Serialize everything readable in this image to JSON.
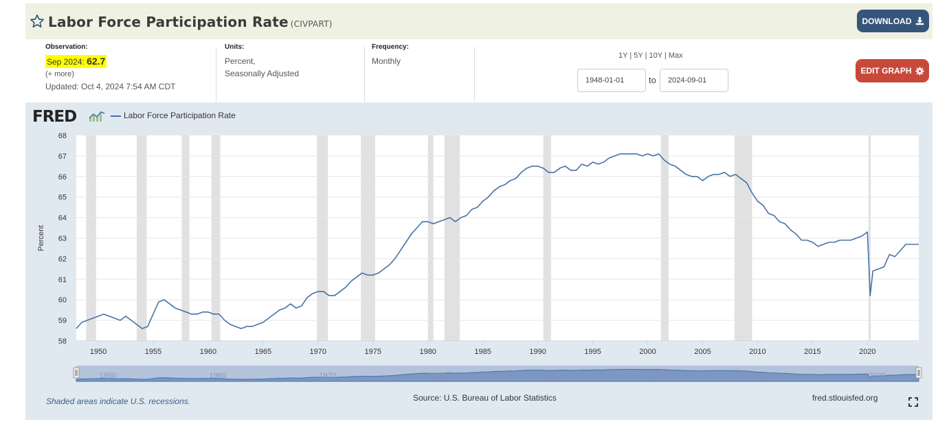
{
  "header": {
    "title": "Labor Force Participation Rate",
    "series_id": "(CIVPART)",
    "download_label": "DOWNLOAD",
    "edit_graph_label": "EDIT GRAPH"
  },
  "observation": {
    "label": "Observation:",
    "date": "Sep 2024:",
    "value": "62.7",
    "more": "(+ more)",
    "updated": "Updated: Oct 4, 2024 7:54 AM CDT"
  },
  "units": {
    "label": "Units:",
    "line1": "Percent,",
    "line2": "Seasonally Adjusted"
  },
  "frequency": {
    "label": "Frequency:",
    "value": "Monthly"
  },
  "range": {
    "links": [
      "1Y",
      "5Y",
      "10Y",
      "Max"
    ],
    "from": "1948-01-01",
    "to_label": "to",
    "to": "2024-09-01"
  },
  "legend": {
    "logo": "FRED",
    "series_name": "Labor Force Participation Rate"
  },
  "footer": {
    "recession_note": "Shaded areas indicate U.S. recessions.",
    "source": "Source: U.S. Bureau of Labor Statistics",
    "site": "fred.stlouisfed.org"
  },
  "colors": {
    "line": "#4572a7",
    "recession": "#e1e1e1",
    "download": "#36557a",
    "edit": "#c8493a",
    "highlight": "#ffff00"
  },
  "chart_data": {
    "type": "line",
    "ylabel": "Percent",
    "xlabel": "",
    "xlim": [
      1948.0,
      2024.67
    ],
    "ylim": [
      58,
      68
    ],
    "yticks": [
      "58",
      "59",
      "60",
      "61",
      "62",
      "63",
      "64",
      "65",
      "66",
      "67",
      "68"
    ],
    "xticks": [
      "1950",
      "1955",
      "1960",
      "1965",
      "1970",
      "1975",
      "1980",
      "1985",
      "1990",
      "1995",
      "2000",
      "2005",
      "2010",
      "2015",
      "2020"
    ],
    "navigator_ticks": [
      "1950",
      "1960",
      "1970",
      "1980",
      "1990",
      "2000",
      "2010",
      "2020"
    ],
    "grid": true,
    "recessions": [
      [
        1948.9,
        1949.8
      ],
      [
        1953.5,
        1954.4
      ],
      [
        1957.6,
        1958.3
      ],
      [
        1960.3,
        1961.1
      ],
      [
        1969.9,
        1970.9
      ],
      [
        1973.9,
        1975.2
      ],
      [
        1980.0,
        1980.5
      ],
      [
        1981.5,
        1982.9
      ],
      [
        1990.5,
        1991.2
      ],
      [
        2001.2,
        2001.9
      ],
      [
        2007.9,
        2009.5
      ],
      [
        2020.1,
        2020.3
      ]
    ],
    "series": [
      {
        "name": "Labor Force Participation Rate",
        "x": [
          1948.0,
          1948.5,
          1949.0,
          1949.5,
          1950.0,
          1950.5,
          1951.0,
          1951.5,
          1952.0,
          1952.5,
          1953.0,
          1953.5,
          1954.0,
          1954.5,
          1955.0,
          1955.5,
          1956.0,
          1956.5,
          1957.0,
          1957.5,
          1958.0,
          1958.5,
          1959.0,
          1959.5,
          1960.0,
          1960.5,
          1961.0,
          1961.5,
          1962.0,
          1962.5,
          1963.0,
          1963.5,
          1964.0,
          1964.5,
          1965.0,
          1965.5,
          1966.0,
          1966.5,
          1967.0,
          1967.5,
          1968.0,
          1968.5,
          1969.0,
          1969.5,
          1970.0,
          1970.5,
          1971.0,
          1971.5,
          1972.0,
          1972.5,
          1973.0,
          1973.5,
          1974.0,
          1974.5,
          1975.0,
          1975.5,
          1976.0,
          1976.5,
          1977.0,
          1977.5,
          1978.0,
          1978.5,
          1979.0,
          1979.5,
          1980.0,
          1980.5,
          1981.0,
          1981.5,
          1982.0,
          1982.5,
          1983.0,
          1983.5,
          1984.0,
          1984.5,
          1985.0,
          1985.5,
          1986.0,
          1986.5,
          1987.0,
          1987.5,
          1988.0,
          1988.5,
          1989.0,
          1989.5,
          1990.0,
          1990.5,
          1991.0,
          1991.5,
          1992.0,
          1992.5,
          1993.0,
          1993.5,
          1994.0,
          1994.5,
          1995.0,
          1995.5,
          1996.0,
          1996.5,
          1997.0,
          1997.5,
          1998.0,
          1998.5,
          1999.0,
          1999.5,
          2000.0,
          2000.5,
          2001.0,
          2001.5,
          2002.0,
          2002.5,
          2003.0,
          2003.5,
          2004.0,
          2004.5,
          2005.0,
          2005.5,
          2006.0,
          2006.5,
          2007.0,
          2007.5,
          2008.0,
          2008.5,
          2009.0,
          2009.5,
          2010.0,
          2010.5,
          2011.0,
          2011.5,
          2012.0,
          2012.5,
          2013.0,
          2013.5,
          2014.0,
          2014.5,
          2015.0,
          2015.5,
          2016.0,
          2016.5,
          2017.0,
          2017.5,
          2018.0,
          2018.5,
          2019.0,
          2019.5,
          2020.0,
          2020.25,
          2020.5,
          2021.0,
          2021.5,
          2022.0,
          2022.5,
          2023.0,
          2023.5,
          2024.0,
          2024.67
        ],
        "values": [
          58.6,
          58.9,
          59.0,
          59.1,
          59.2,
          59.3,
          59.2,
          59.1,
          59.0,
          59.2,
          59.0,
          58.8,
          58.6,
          58.7,
          59.3,
          59.9,
          60.0,
          59.8,
          59.6,
          59.5,
          59.4,
          59.3,
          59.3,
          59.4,
          59.4,
          59.3,
          59.3,
          59.0,
          58.8,
          58.7,
          58.6,
          58.7,
          58.7,
          58.8,
          58.9,
          59.1,
          59.3,
          59.5,
          59.6,
          59.8,
          59.6,
          59.7,
          60.1,
          60.3,
          60.4,
          60.4,
          60.2,
          60.2,
          60.4,
          60.6,
          60.9,
          61.1,
          61.3,
          61.2,
          61.2,
          61.3,
          61.5,
          61.7,
          62.0,
          62.4,
          62.8,
          63.2,
          63.5,
          63.8,
          63.8,
          63.7,
          63.8,
          63.9,
          64.0,
          63.8,
          64.0,
          64.1,
          64.4,
          64.5,
          64.8,
          65.0,
          65.3,
          65.5,
          65.6,
          65.8,
          65.9,
          66.2,
          66.4,
          66.5,
          66.5,
          66.4,
          66.2,
          66.2,
          66.4,
          66.5,
          66.3,
          66.3,
          66.6,
          66.5,
          66.7,
          66.6,
          66.7,
          66.9,
          67.0,
          67.1,
          67.1,
          67.1,
          67.1,
          67.0,
          67.1,
          67.0,
          67.1,
          66.8,
          66.6,
          66.5,
          66.3,
          66.1,
          66.0,
          66.0,
          65.8,
          66.0,
          66.1,
          66.1,
          66.2,
          66.0,
          66.1,
          65.9,
          65.7,
          65.2,
          64.8,
          64.6,
          64.2,
          64.1,
          63.8,
          63.7,
          63.4,
          63.2,
          62.9,
          62.9,
          62.8,
          62.6,
          62.7,
          62.8,
          62.8,
          62.9,
          62.9,
          62.9,
          63.0,
          63.1,
          63.3,
          60.2,
          61.4,
          61.5,
          61.6,
          62.2,
          62.1,
          62.4,
          62.7,
          62.7,
          62.7
        ]
      }
    ]
  }
}
